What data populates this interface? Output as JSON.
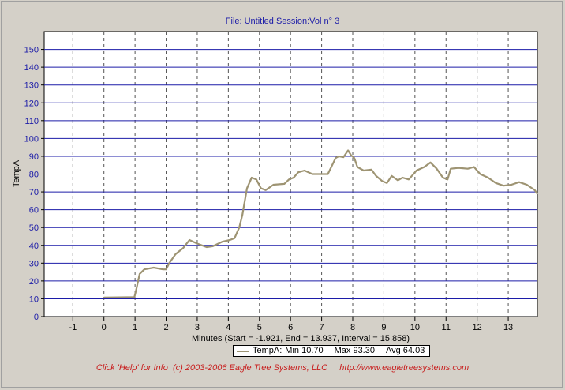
{
  "header": {
    "file_label": "File: Untitled   Session:Vol n° 3"
  },
  "footer": {
    "text": "Click 'Help' for Info  (c) 2003-2006 Eagle Tree Systems, LLC     http://www.eagletreesystems.com"
  },
  "legend": {
    "series_name": "TempA:",
    "min_text": "Min 10.70",
    "max_text": "Max 93.30",
    "avg_text": "Avg 64.03"
  },
  "colors": {
    "line": "#9e9473",
    "hgrid": "#1c1ca8",
    "vgrid": "#555555",
    "accent_text": "#1c1ca8",
    "footer": "#c81e1e"
  },
  "chart_data": {
    "type": "line",
    "title": "",
    "xlabel": "Minutes (Start = -1.921,  End = 13.937,  Interval =  15.858)",
    "ylabel": "TempA",
    "xlim": [
      -1.921,
      13.937
    ],
    "ylim": [
      0,
      160
    ],
    "x_ticks": [
      -1,
      0,
      1,
      2,
      3,
      4,
      5,
      6,
      7,
      8,
      9,
      10,
      11,
      12,
      13
    ],
    "y_ticks": [
      0,
      10,
      20,
      30,
      40,
      50,
      60,
      70,
      80,
      90,
      100,
      110,
      120,
      130,
      140,
      150
    ],
    "grid": true,
    "series": [
      {
        "name": "TempA",
        "x": [
          0.0,
          0.5,
          0.98,
          1.05,
          1.15,
          1.3,
          1.6,
          1.9,
          2.0,
          2.1,
          2.3,
          2.55,
          2.75,
          3.0,
          3.3,
          3.5,
          3.8,
          4.05,
          4.2,
          4.35,
          4.45,
          4.6,
          4.75,
          4.9,
          5.05,
          5.2,
          5.45,
          5.8,
          5.95,
          6.1,
          6.25,
          6.45,
          6.7,
          6.95,
          7.2,
          7.45,
          7.55,
          7.7,
          7.85,
          7.95,
          8.05,
          8.15,
          8.35,
          8.6,
          8.75,
          8.95,
          9.1,
          9.25,
          9.45,
          9.6,
          9.8,
          10.05,
          10.3,
          10.5,
          10.7,
          10.9,
          11.05,
          11.15,
          11.4,
          11.7,
          11.9,
          12.1,
          12.35,
          12.6,
          12.85,
          13.1,
          13.35,
          13.6,
          13.85,
          13.93
        ],
        "values": [
          10.7,
          10.8,
          10.9,
          16,
          24,
          26.5,
          27.5,
          26.5,
          26.5,
          30,
          35,
          38.5,
          43,
          41,
          39,
          39.5,
          42,
          43,
          44,
          50,
          57,
          72,
          78,
          77,
          72,
          71,
          74,
          74.5,
          77,
          78,
          81,
          82,
          80,
          80,
          80,
          89,
          90,
          89.5,
          93.3,
          90.5,
          89,
          84,
          82,
          82.5,
          79,
          76,
          75,
          79,
          76.5,
          78,
          77,
          82,
          84,
          86.5,
          83,
          78,
          77,
          83,
          83.5,
          83,
          84,
          80,
          78,
          75,
          73.5,
          74,
          75.5,
          74,
          71,
          69
        ]
      }
    ]
  }
}
